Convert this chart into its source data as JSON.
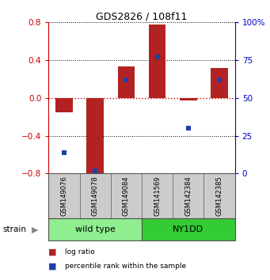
{
  "title": "GDS2826 / 108f11",
  "samples": [
    "GSM149076",
    "GSM149078",
    "GSM149084",
    "GSM141569",
    "GSM142384",
    "GSM142385"
  ],
  "log_ratio": [
    -0.15,
    -0.8,
    0.33,
    0.78,
    -0.03,
    0.32
  ],
  "percentile_rank": [
    14,
    2,
    62,
    77,
    30,
    62
  ],
  "ylim_left": [
    -0.8,
    0.8
  ],
  "ylim_right": [
    0,
    100
  ],
  "yticks_left": [
    -0.8,
    -0.4,
    0.0,
    0.4,
    0.8
  ],
  "yticks_right": [
    0,
    25,
    50,
    75,
    100
  ],
  "ytick_labels_right": [
    "0",
    "25",
    "50",
    "75",
    "100%"
  ],
  "bar_color": "#b22222",
  "dot_color": "#1e3faa",
  "hline_color": "#cc0000",
  "groups": [
    {
      "label": "wild type",
      "indices": [
        0,
        1,
        2
      ],
      "color": "#90ee90"
    },
    {
      "label": "NY1DD",
      "indices": [
        3,
        4,
        5
      ],
      "color": "#33cc33"
    }
  ],
  "strain_label": "strain",
  "legend_items": [
    {
      "label": "log ratio",
      "color": "#b22222"
    },
    {
      "label": "percentile rank within the sample",
      "color": "#1e3faa"
    }
  ],
  "bar_width": 0.55,
  "background_color": "#ffffff",
  "label_color_left": "#cc0000",
  "label_color_right": "#0000cc",
  "sample_bg": "#cccccc",
  "group_border": "#555555"
}
